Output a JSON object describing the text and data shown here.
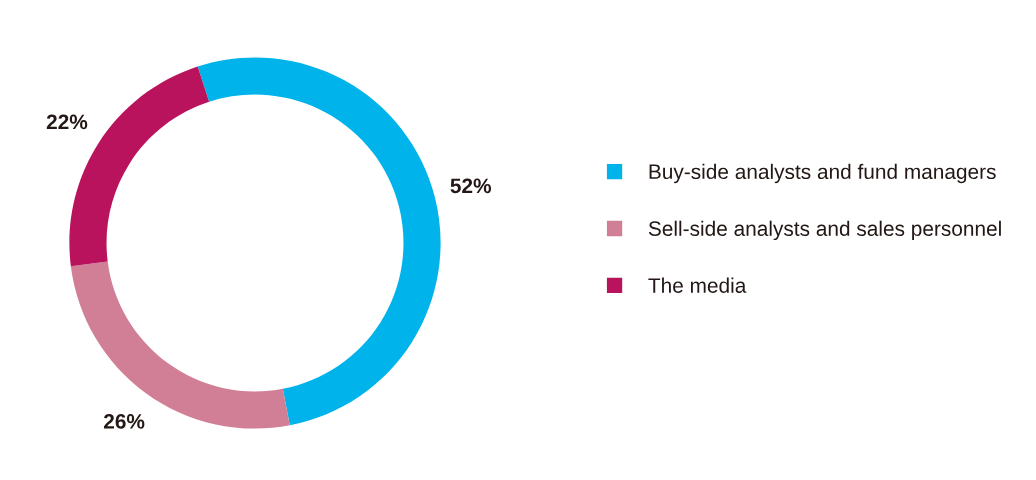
{
  "chart_data": {
    "type": "donut",
    "categories": [
      "Buy-side analysts and fund managers",
      "Sell-side analysts and sales personnel",
      "The media"
    ],
    "values": [
      52,
      26,
      22
    ],
    "colors": [
      "#00b4eb",
      "#d17f96",
      "#b8135c"
    ],
    "value_labels": [
      "52%",
      "26%",
      "22%"
    ],
    "legend": "right"
  }
}
